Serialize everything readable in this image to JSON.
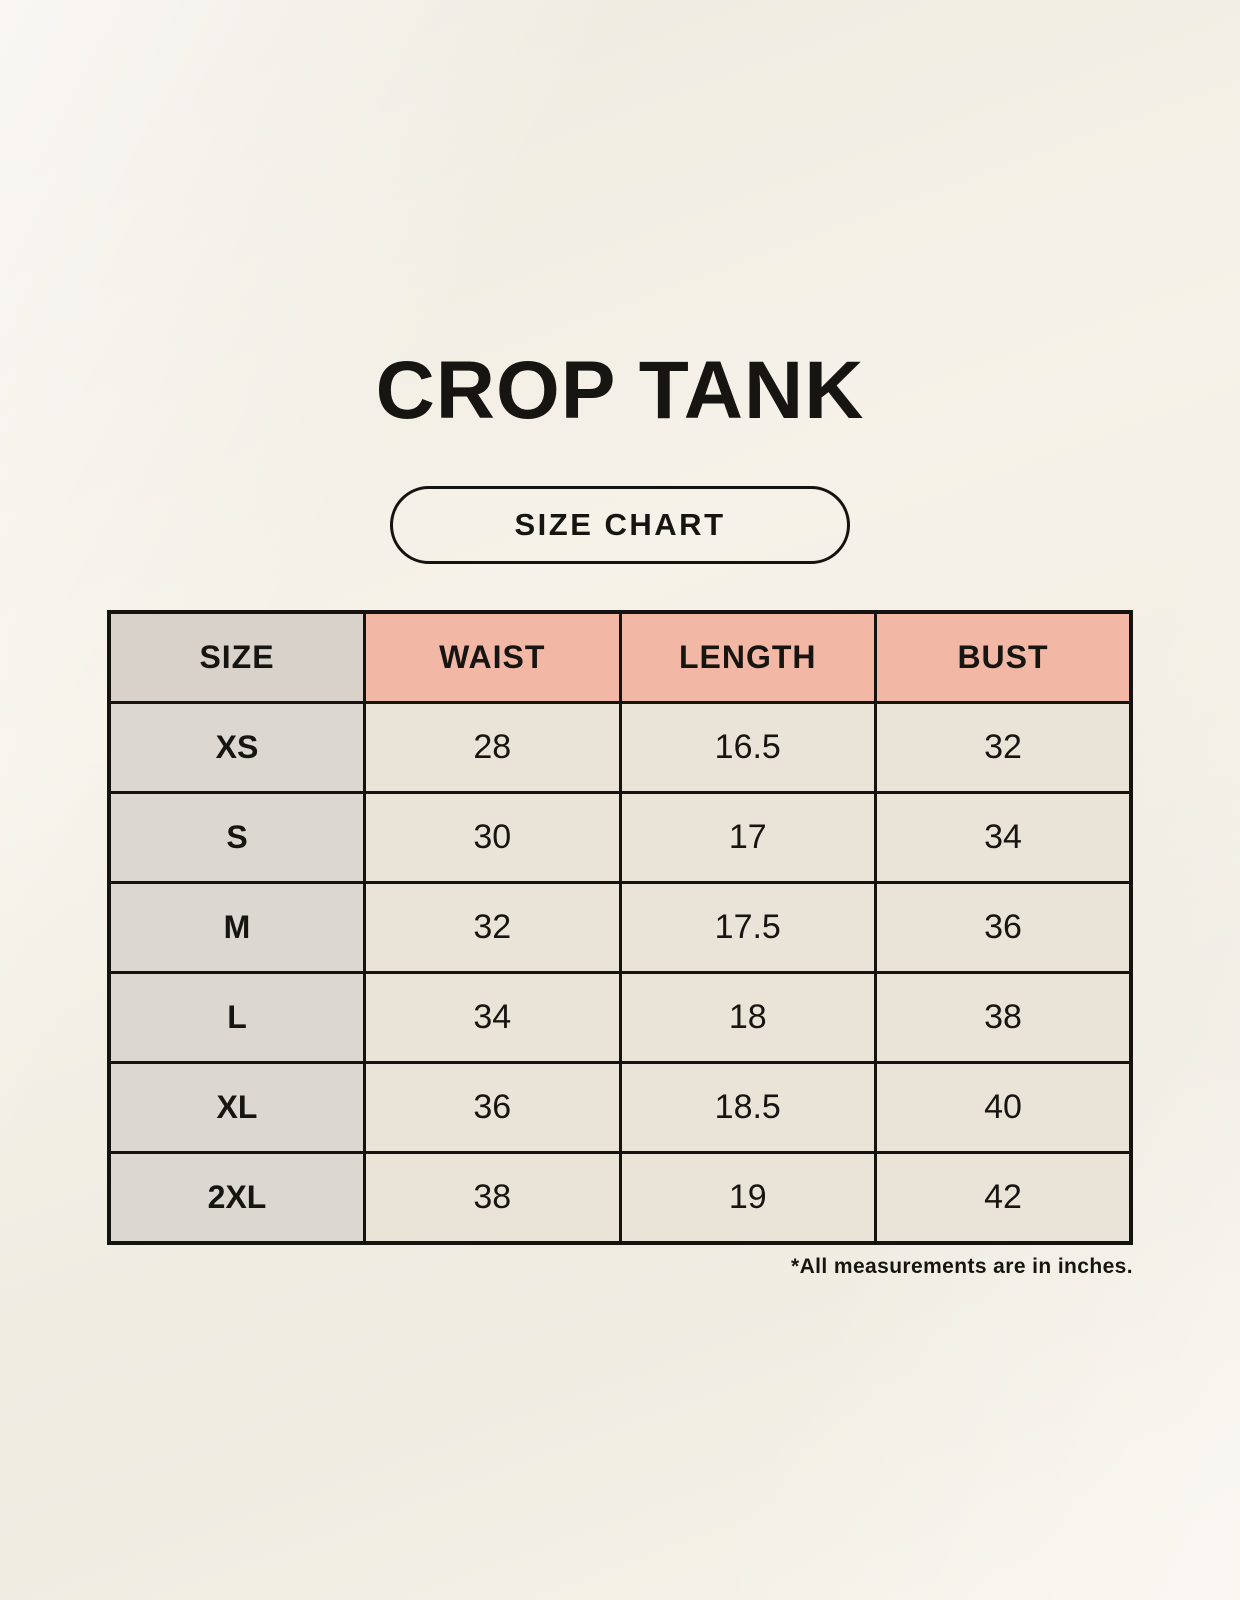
{
  "page": {
    "title": "CROP TANK",
    "badge_label": "SIZE CHART",
    "footnote": "*All measurements are in inches."
  },
  "chart_data": {
    "type": "table",
    "title": "CROP TANK",
    "subtitle": "SIZE CHART",
    "columns": [
      "SIZE",
      "WAIST",
      "LENGTH",
      "BUST"
    ],
    "rows": [
      [
        "XS",
        "28",
        "16.5",
        "32"
      ],
      [
        "S",
        "30",
        "17",
        "34"
      ],
      [
        "M",
        "32",
        "17.5",
        "36"
      ],
      [
        "L",
        "34",
        "18",
        "38"
      ],
      [
        "XL",
        "36",
        "18.5",
        "40"
      ],
      [
        "2XL",
        "38",
        "19",
        "42"
      ]
    ],
    "note": "*All measurements are in inches.",
    "units": "inches"
  },
  "colors": {
    "background": "#f6f2e9",
    "header_size_bg": "#d8d2cb",
    "header_measure_bg": "#f2b8a5",
    "size_column_bg": "#ddd7d1",
    "data_cell_bg": "#eae4d8",
    "border": "#15130f",
    "text": "#171511"
  }
}
